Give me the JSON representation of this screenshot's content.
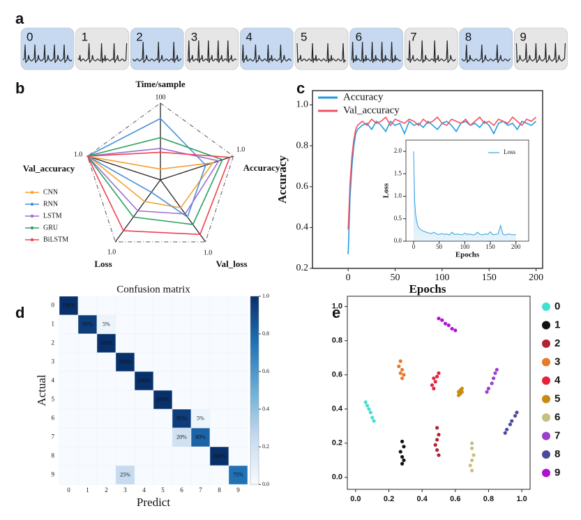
{
  "panel_labels": [
    "a",
    "b",
    "c",
    "d",
    "e"
  ],
  "strip": {
    "labels": [
      "0",
      "1",
      "2",
      "3",
      "4",
      "5",
      "6",
      "7",
      "8",
      "9"
    ]
  },
  "chart_data": [
    {
      "type": "radar",
      "axes": [
        "Time/sample",
        "Accuracy",
        "Val_loss",
        "Loss",
        "Val_accuracy"
      ],
      "axis_max": [
        100,
        {
          "value": 1,
          "label": "1.0"
        },
        {
          "value": 1,
          "label": "1.0"
        },
        {
          "value": 1,
          "label": "1.0"
        },
        {
          "value": 1,
          "label": "1.0"
        }
      ],
      "series": [
        {
          "name": "CNN",
          "color": "#f5a030",
          "values": [
            14,
            0.72,
            0.45,
            0.35,
            0.98
          ]
        },
        {
          "name": "RNN",
          "color": "#4a90d9",
          "values": [
            80,
            0.62,
            0.6,
            0.2,
            1.0
          ]
        },
        {
          "name": "LSTM",
          "color": "#9b6fd0",
          "values": [
            41,
            0.8,
            0.55,
            0.5,
            1.0
          ]
        },
        {
          "name": "GRU",
          "color": "#2aa060",
          "values": [
            55,
            0.85,
            0.72,
            0.6,
            1.0
          ]
        },
        {
          "name": "BiLSTM",
          "color": "#f04050",
          "values": [
            36,
            0.95,
            0.88,
            0.82,
            1.0
          ]
        }
      ]
    },
    {
      "type": "line",
      "xlabel": "Epochs",
      "ylabel": "Accuracy",
      "legend": "upper left",
      "x": [
        0,
        2,
        4,
        6,
        8,
        10,
        15,
        20,
        25,
        30,
        35,
        40,
        45,
        50,
        55,
        60,
        65,
        70,
        75,
        80,
        85,
        90,
        95,
        100,
        105,
        110,
        115,
        120,
        125,
        130,
        135,
        140,
        145,
        150,
        155,
        160,
        165,
        170,
        175,
        180,
        185,
        190,
        195,
        200
      ],
      "series": [
        {
          "name": "Accuracy",
          "color": "#1f9ae0",
          "values": [
            0.27,
            0.55,
            0.7,
            0.8,
            0.86,
            0.88,
            0.9,
            0.91,
            0.88,
            0.92,
            0.9,
            0.87,
            0.92,
            0.9,
            0.91,
            0.86,
            0.92,
            0.9,
            0.91,
            0.89,
            0.92,
            0.9,
            0.88,
            0.91,
            0.92,
            0.9,
            0.87,
            0.91,
            0.92,
            0.9,
            0.91,
            0.89,
            0.92,
            0.9,
            0.86,
            0.91,
            0.92,
            0.9,
            0.91,
            0.88,
            0.92,
            0.91,
            0.9,
            0.92
          ]
        },
        {
          "name": "Val_accuracy",
          "color": "#f05060",
          "values": [
            0.39,
            0.62,
            0.75,
            0.83,
            0.88,
            0.9,
            0.92,
            0.9,
            0.93,
            0.91,
            0.92,
            0.94,
            0.9,
            0.93,
            0.92,
            0.91,
            0.93,
            0.92,
            0.9,
            0.93,
            0.91,
            0.92,
            0.94,
            0.91,
            0.9,
            0.93,
            0.92,
            0.91,
            0.93,
            0.9,
            0.92,
            0.94,
            0.91,
            0.92,
            0.9,
            0.93,
            0.92,
            0.91,
            0.94,
            0.92,
            0.9,
            0.93,
            0.92,
            0.94
          ]
        }
      ],
      "xlim": [
        -38,
        207
      ],
      "ylim": [
        0.2,
        1.07
      ],
      "xticks": [
        0,
        50,
        100,
        150,
        200
      ],
      "yticks": [
        0.2,
        0.4,
        0.6,
        0.8,
        {
          "value": 1,
          "label": "1.0"
        }
      ]
    },
    {
      "type": "line",
      "xlabel": "Epochs",
      "ylabel": "Loss",
      "legend": "upper right",
      "fill": true,
      "x": [
        0,
        2,
        4,
        6,
        8,
        10,
        15,
        20,
        25,
        30,
        35,
        40,
        45,
        50,
        55,
        60,
        65,
        70,
        75,
        80,
        85,
        90,
        95,
        100,
        105,
        110,
        115,
        120,
        125,
        130,
        135,
        140,
        145,
        150,
        155,
        160,
        165,
        170,
        175,
        180,
        185,
        190,
        195,
        200
      ],
      "series": [
        {
          "name": "Loss",
          "color": "#3aa0e0",
          "values": [
            2.0,
            0.9,
            0.6,
            0.45,
            0.35,
            0.3,
            0.25,
            0.22,
            0.2,
            0.18,
            0.17,
            0.2,
            0.16,
            0.15,
            0.17,
            0.15,
            0.16,
            0.14,
            0.2,
            0.15,
            0.16,
            0.15,
            0.14,
            0.18,
            0.15,
            0.16,
            0.14,
            0.15,
            0.2,
            0.15,
            0.14,
            0.16,
            0.15,
            0.21,
            0.14,
            0.15,
            0.16,
            0.35,
            0.15,
            0.14,
            0.16,
            0.15,
            0.14,
            0.15
          ]
        }
      ],
      "xlim": [
        -15,
        225
      ],
      "ylim": [
        0,
        2.25
      ],
      "xticks": [
        0,
        50,
        100,
        150,
        200
      ],
      "yticks": [
        {
          "value": 0,
          "label": "0.0"
        },
        0.5,
        {
          "value": 1,
          "label": "1.0"
        },
        1.5,
        {
          "value": 2,
          "label": "2.0"
        }
      ]
    },
    {
      "type": "heatmap",
      "title": "Confusion matrix",
      "xlabel": "Predict",
      "ylabel": "Actual",
      "categories": [
        "0",
        "1",
        "2",
        "3",
        "4",
        "5",
        "6",
        "7",
        "8",
        "9"
      ],
      "values": [
        [
          1,
          0,
          0,
          0,
          0,
          0,
          0,
          0,
          0,
          0
        ],
        [
          0,
          0.95,
          0.05,
          0,
          0,
          0,
          0,
          0,
          0,
          0
        ],
        [
          0,
          0,
          1,
          0,
          0,
          0,
          0,
          0,
          0,
          0
        ],
        [
          0,
          0,
          0,
          1,
          0,
          0,
          0,
          0,
          0,
          0
        ],
        [
          0,
          0,
          0,
          0,
          1,
          0,
          0,
          0,
          0,
          0
        ],
        [
          0,
          0,
          0,
          0,
          0,
          1,
          0,
          0,
          0,
          0
        ],
        [
          0,
          0,
          0,
          0,
          0,
          0,
          0.95,
          0.05,
          0,
          0
        ],
        [
          0,
          0,
          0,
          0,
          0,
          0,
          0.2,
          0.8,
          0,
          0
        ],
        [
          0,
          0,
          0,
          0,
          0,
          0,
          0,
          0,
          1,
          0
        ],
        [
          0,
          0,
          0,
          0.25,
          0,
          0,
          0,
          0,
          0,
          0.75
        ]
      ],
      "value_labels": [
        [
          "100%",
          null,
          null,
          null,
          null,
          null,
          null,
          null,
          null,
          null
        ],
        [
          null,
          "95%",
          "5%",
          null,
          null,
          null,
          null,
          null,
          null,
          null
        ],
        [
          null,
          null,
          "100%",
          null,
          null,
          null,
          null,
          null,
          null,
          null
        ],
        [
          null,
          null,
          null,
          "100%",
          null,
          null,
          null,
          null,
          null,
          null
        ],
        [
          null,
          null,
          null,
          null,
          "100%",
          null,
          null,
          null,
          null,
          null
        ],
        [
          null,
          null,
          null,
          null,
          null,
          "100%",
          null,
          null,
          null,
          null
        ],
        [
          null,
          null,
          null,
          null,
          null,
          null,
          "95%",
          "5%",
          null,
          null
        ],
        [
          null,
          null,
          null,
          null,
          null,
          null,
          "20%",
          "80%",
          null,
          null
        ],
        [
          null,
          null,
          null,
          null,
          null,
          null,
          null,
          null,
          "100%",
          null
        ],
        [
          null,
          null,
          null,
          "25%",
          null,
          null,
          null,
          null,
          null,
          "75%"
        ]
      ],
      "colorbar_lim": [
        0,
        1
      ],
      "colorbar_ticks": [
        {
          "value": 0,
          "label": "0.0"
        },
        0.2,
        0.4,
        0.6,
        0.8,
        {
          "value": 1,
          "label": "1.0"
        }
      ]
    },
    {
      "type": "scatter",
      "xlim": [
        -0.05,
        1.05
      ],
      "ylim": [
        -0.07,
        1.06
      ],
      "xticks": [
        {
          "value": 0,
          "label": "0.0"
        },
        0.2,
        0.4,
        0.6,
        0.8,
        {
          "value": 1,
          "label": "1.0"
        }
      ],
      "yticks": [
        {
          "value": 0,
          "label": "0.0"
        },
        0.2,
        0.4,
        0.6,
        0.8,
        {
          "value": 1,
          "label": "1.0"
        }
      ],
      "series": [
        {
          "name": "0",
          "color": "#40e0d0",
          "x": [
            0.06,
            0.07,
            0.08,
            0.09,
            0.1,
            0.11
          ],
          "values": [
            0.44,
            0.42,
            0.4,
            0.38,
            0.35,
            0.33
          ]
        },
        {
          "name": "1",
          "color": "#111111",
          "x": [
            0.28,
            0.29,
            0.27,
            0.28,
            0.29,
            0.28
          ],
          "values": [
            0.21,
            0.18,
            0.15,
            0.12,
            0.1,
            0.08
          ]
        },
        {
          "name": "2",
          "color": "#b22234",
          "x": [
            0.49,
            0.5,
            0.49,
            0.48,
            0.49,
            0.5
          ],
          "values": [
            0.29,
            0.25,
            0.22,
            0.19,
            0.16,
            0.13
          ]
        },
        {
          "name": "3",
          "color": "#e8782a",
          "x": [
            0.27,
            0.26,
            0.28,
            0.27,
            0.29,
            0.28
          ],
          "values": [
            0.68,
            0.65,
            0.63,
            0.61,
            0.6,
            0.58
          ]
        },
        {
          "name": "4",
          "color": "#e8203c",
          "x": [
            0.5,
            0.49,
            0.47,
            0.48,
            0.46,
            0.47
          ],
          "values": [
            0.61,
            0.59,
            0.58,
            0.56,
            0.54,
            0.52
          ]
        },
        {
          "name": "5",
          "color": "#c88a10",
          "x": [
            0.64,
            0.63,
            0.62,
            0.63,
            0.62,
            0.64
          ],
          "values": [
            0.52,
            0.51,
            0.5,
            0.49,
            0.48,
            0.5
          ]
        },
        {
          "name": "6",
          "color": "#c8be82",
          "x": [
            0.7,
            0.7,
            0.71,
            0.7,
            0.69,
            0.7
          ],
          "values": [
            0.2,
            0.17,
            0.13,
            0.1,
            0.07,
            0.04
          ]
        },
        {
          "name": "7",
          "color": "#9b3fcf",
          "x": [
            0.85,
            0.84,
            0.83,
            0.82,
            0.8,
            0.79
          ],
          "values": [
            0.63,
            0.61,
            0.58,
            0.55,
            0.52,
            0.5
          ]
        },
        {
          "name": "8",
          "color": "#4a4a9a",
          "x": [
            0.97,
            0.96,
            0.94,
            0.93,
            0.91,
            0.9
          ],
          "values": [
            0.38,
            0.36,
            0.33,
            0.31,
            0.28,
            0.26
          ]
        },
        {
          "name": "9",
          "color": "#b010d0",
          "x": [
            0.5,
            0.52,
            0.54,
            0.56,
            0.58,
            0.6
          ],
          "values": [
            0.93,
            0.92,
            0.9,
            0.89,
            0.87,
            0.86
          ]
        }
      ]
    }
  ]
}
